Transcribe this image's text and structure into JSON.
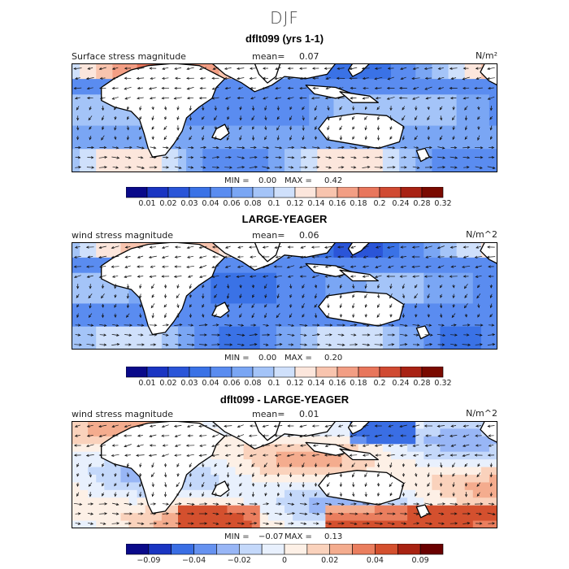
{
  "chart_data": {
    "type": "heatmap",
    "title": "DJF",
    "panels": [
      {
        "title": "dflt099 (yrs 1-1)",
        "field_label": "Surface stress magnitude",
        "mean_label": "mean=",
        "mean_value": "0.07",
        "units": "N/m²",
        "min_label": "MIN =",
        "min_value": "0.00",
        "max_label": "MAX =",
        "max_value": "0.42",
        "colorbar_levels": [
          "0.01",
          "0.02",
          "0.03",
          "0.04",
          "0.06",
          "0.08",
          "0.1",
          "0.12",
          "0.14",
          "0.16",
          "0.18",
          "0.2",
          "0.24",
          "0.28",
          "0.32"
        ],
        "colorbar_ticks": [
          "0.01",
          "0.02",
          "0.03",
          "0.04",
          "0.06",
          "0.08",
          "0.1",
          "0.12",
          "0.14",
          "0.16",
          "0.18",
          "0.2",
          "0.24",
          "0.28",
          "0.32"
        ]
      },
      {
        "title": "LARGE-YEAGER",
        "field_label": "wind stress magnitude",
        "mean_label": "mean=",
        "mean_value": "0.06",
        "units": "N/m^2",
        "min_label": "MIN =",
        "min_value": "0.00",
        "max_label": "MAX =",
        "max_value": "0.20",
        "colorbar_levels": [
          "0.01",
          "0.02",
          "0.03",
          "0.04",
          "0.06",
          "0.08",
          "0.1",
          "0.12",
          "0.14",
          "0.16",
          "0.18",
          "0.2",
          "0.24",
          "0.28",
          "0.32"
        ],
        "colorbar_ticks": [
          "0.01",
          "0.02",
          "0.03",
          "0.04",
          "0.06",
          "0.08",
          "0.1",
          "0.12",
          "0.14",
          "0.16",
          "0.18",
          "0.2",
          "0.24",
          "0.28",
          "0.32"
        ]
      },
      {
        "title": "dflt099 - LARGE-YEAGER",
        "field_label": "wind stress magnitude",
        "mean_label": "mean=",
        "mean_value": "0.01",
        "units": "N/m^2",
        "min_label": "MIN =",
        "min_value": "−0.07",
        "max_label": "MAX =",
        "max_value": "0.13",
        "colorbar_levels": [
          "-0.09",
          "-0.06",
          "-0.04",
          "-0.03",
          "-0.02",
          "-0.01",
          "0",
          "0.01",
          "0.02",
          "0.03",
          "0.04",
          "0.06",
          "0.09",
          "0.12"
        ],
        "colorbar_ticks": [
          "−0.09",
          "−0.04",
          "−0.02",
          "0",
          "0.02",
          "0.04",
          "0.09"
        ]
      }
    ],
    "colors": {
      "seq": [
        "#0a0a8a",
        "#1a35c2",
        "#2a55d8",
        "#3a72e6",
        "#5a8cf0",
        "#7aa6f4",
        "#a4c4f8",
        "#cfe0fb",
        "#fce6dc",
        "#f8c4ae",
        "#f29e84",
        "#e8765c",
        "#d04a32",
        "#a82214",
        "#7a0a00"
      ],
      "div": [
        "#0a0a8a",
        "#1a35c2",
        "#3a6ee4",
        "#6692f0",
        "#98b6f6",
        "#c4d8fa",
        "#e8f0fd",
        "#fdf0e6",
        "#fad2bc",
        "#f4ac8e",
        "#ea7e5e",
        "#d4502e",
        "#a82212",
        "#6a0000"
      ]
    }
  }
}
